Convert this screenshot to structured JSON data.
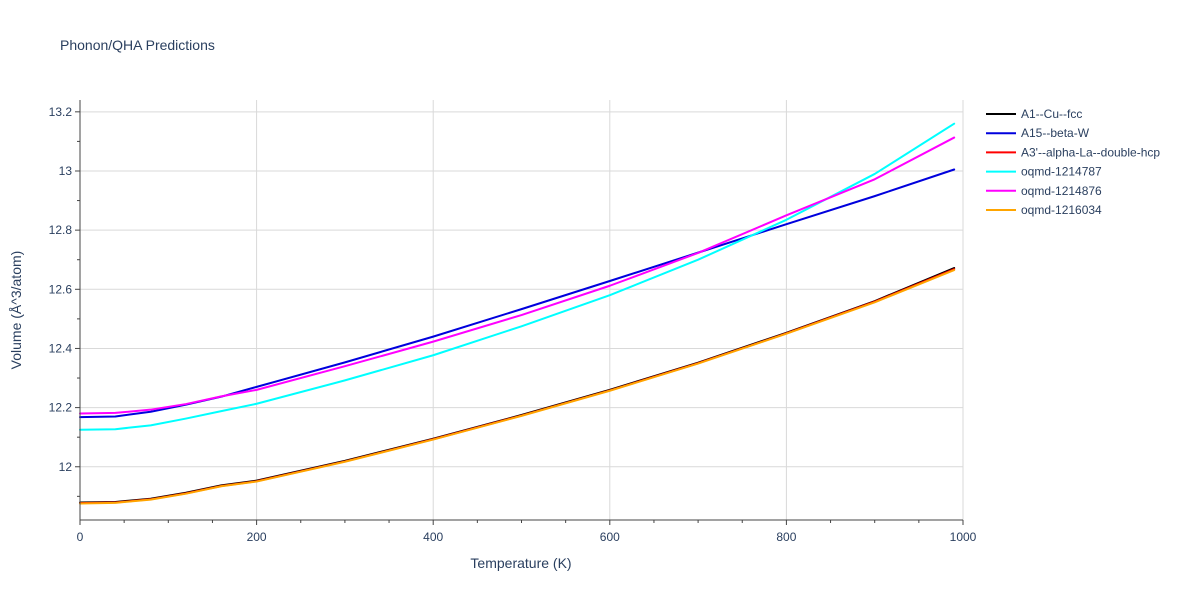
{
  "chart_data": {
    "type": "line",
    "title": "Phonon/QHA Predictions",
    "xlabel": "Temperature (K)",
    "ylabel": "Volume (Å^3/atom)",
    "xlim": [
      0,
      1000
    ],
    "ylim": [
      11.82,
      13.24
    ],
    "xticks": [
      0,
      200,
      400,
      600,
      800,
      1000
    ],
    "yticks": [
      12,
      12.2,
      12.4,
      12.6,
      12.8,
      13,
      13.2
    ],
    "xtick_labels": [
      "0",
      "200",
      "400",
      "600",
      "800",
      "1000"
    ],
    "ytick_labels": [
      "12",
      "12.2",
      "12.4",
      "12.6",
      "12.8",
      "13",
      "13.2"
    ],
    "grid": true,
    "legend_position": "right",
    "series": [
      {
        "name": "A1--Cu--fcc",
        "color": "#000000",
        "x": [
          0,
          40,
          80,
          120,
          160,
          200,
          300,
          400,
          500,
          600,
          700,
          800,
          900,
          990
        ],
        "y": [
          11.879,
          11.881,
          11.892,
          11.912,
          11.937,
          11.953,
          12.02,
          12.095,
          12.175,
          12.26,
          12.352,
          12.453,
          12.56,
          12.672
        ]
      },
      {
        "name": "A15--beta-W",
        "color": "#0000dd",
        "x": [
          0,
          40,
          80,
          120,
          160,
          200,
          300,
          400,
          500,
          600,
          700,
          800,
          900,
          990
        ],
        "y": [
          12.168,
          12.17,
          12.186,
          12.21,
          12.237,
          12.27,
          12.353,
          12.44,
          12.533,
          12.628,
          12.724,
          12.82,
          12.915,
          13.005
        ]
      },
      {
        "name": "A3'--alpha-La--double-hcp",
        "color": "#ff0000",
        "x": [
          0,
          40,
          80,
          120,
          160,
          200,
          300,
          400,
          500,
          600,
          700,
          800,
          900,
          990
        ],
        "y": [
          11.877,
          11.879,
          11.89,
          11.91,
          11.935,
          11.951,
          12.018,
          12.093,
          12.173,
          12.258,
          12.35,
          12.451,
          12.558,
          12.668
        ]
      },
      {
        "name": "oqmd-1214787",
        "color": "#00ffff",
        "x": [
          0,
          40,
          80,
          120,
          160,
          200,
          300,
          400,
          500,
          600,
          700,
          800,
          900,
          990
        ],
        "y": [
          12.125,
          12.127,
          12.14,
          12.163,
          12.188,
          12.213,
          12.292,
          12.377,
          12.475,
          12.58,
          12.7,
          12.835,
          12.99,
          13.16
        ]
      },
      {
        "name": "oqmd-1214876",
        "color": "#ff00ff",
        "x": [
          0,
          40,
          80,
          120,
          160,
          200,
          300,
          400,
          500,
          600,
          700,
          800,
          900,
          990
        ],
        "y": [
          12.18,
          12.182,
          12.193,
          12.212,
          12.238,
          12.26,
          12.34,
          12.423,
          12.513,
          12.612,
          12.723,
          12.85,
          12.972,
          13.113
        ]
      },
      {
        "name": "oqmd-1216034",
        "color": "#ffa500",
        "x": [
          0,
          40,
          80,
          120,
          160,
          200,
          300,
          400,
          500,
          600,
          700,
          800,
          900,
          990
        ],
        "y": [
          11.876,
          11.878,
          11.889,
          11.909,
          11.934,
          11.95,
          12.017,
          12.092,
          12.172,
          12.257,
          12.349,
          12.45,
          12.556,
          12.665
        ]
      }
    ]
  }
}
